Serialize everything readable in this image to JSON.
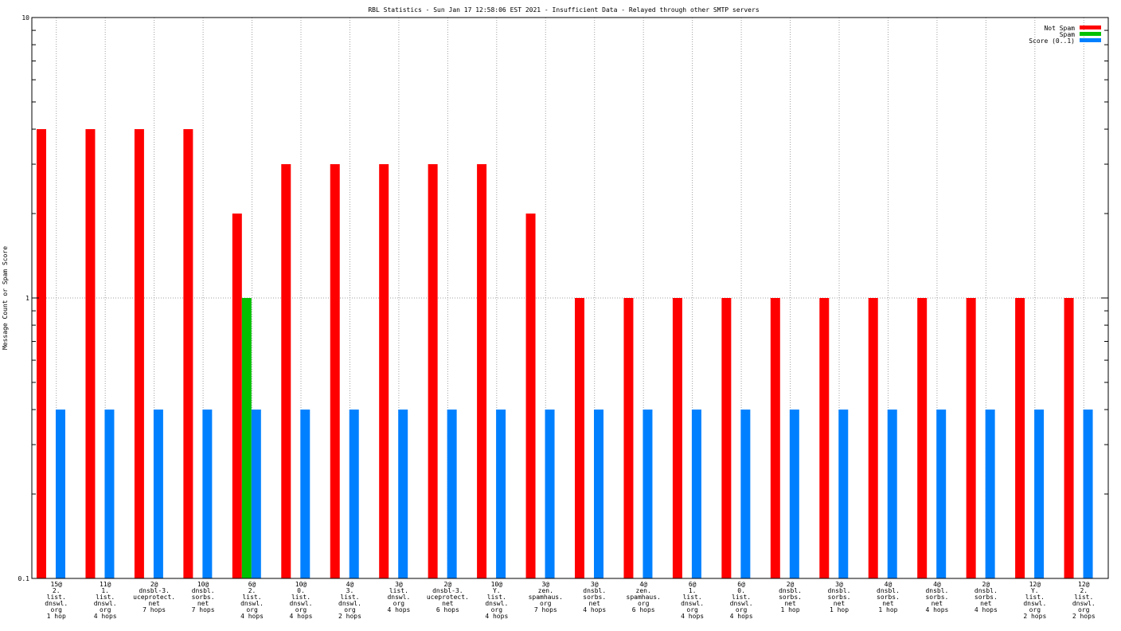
{
  "chart_data": {
    "type": "bar",
    "title": "RBL Statistics - Sun Jan 17 12:58:06 EST 2021 - Insufficient Data - Relayed through other SMTP servers",
    "ylabel": "Message Count or Spam Score",
    "xlabel": "",
    "y_scale": "log",
    "ylim": [
      0.1,
      10
    ],
    "y_ticks": [
      {
        "value": 0.1,
        "label": "0.1"
      },
      {
        "value": 1,
        "label": "1"
      },
      {
        "value": 10,
        "label": "10"
      }
    ],
    "grid": true,
    "legend_position": "top-right",
    "categories": [
      [
        "15@",
        "2.",
        "list.",
        "dnswl.",
        "org",
        "1 hop"
      ],
      [
        "11@",
        "1.",
        "list.",
        "dnswl.",
        "org",
        "4 hops"
      ],
      [
        "2@",
        "dnsbl-3.",
        "uceprotect.",
        "net",
        "7 hops"
      ],
      [
        "10@",
        "dnsbl.",
        "sorbs.",
        "net",
        "7 hops"
      ],
      [
        "6@",
        "2.",
        "list.",
        "dnswl.",
        "org",
        "4 hops"
      ],
      [
        "10@",
        "0.",
        "list.",
        "dnswl.",
        "org",
        "4 hops"
      ],
      [
        "4@",
        "3.",
        "list.",
        "dnswl.",
        "org",
        "2 hops"
      ],
      [
        "3@",
        "list.",
        "dnswl.",
        "org",
        "4 hops"
      ],
      [
        "2@",
        "dnsbl-3.",
        "uceprotect.",
        "net",
        "6 hops"
      ],
      [
        "10@",
        "Y.",
        "list.",
        "dnswl.",
        "org",
        "4 hops"
      ],
      [
        "3@",
        "zen.",
        "spamhaus.",
        "org",
        "7 hops"
      ],
      [
        "3@",
        "dnsbl.",
        "sorbs.",
        "net",
        "4 hops"
      ],
      [
        "4@",
        "zen.",
        "spamhaus.",
        "org",
        "6 hops"
      ],
      [
        "6@",
        "1.",
        "list.",
        "dnswl.",
        "org",
        "4 hops"
      ],
      [
        "6@",
        "0.",
        "list.",
        "dnswl.",
        "org",
        "4 hops"
      ],
      [
        "2@",
        "dnsbl.",
        "sorbs.",
        "net",
        "1 hop"
      ],
      [
        "3@",
        "dnsbl.",
        "sorbs.",
        "net",
        "1 hop"
      ],
      [
        "4@",
        "dnsbl.",
        "sorbs.",
        "net",
        "1 hop"
      ],
      [
        "4@",
        "dnsbl.",
        "sorbs.",
        "net",
        "4 hops"
      ],
      [
        "2@",
        "dnsbl.",
        "sorbs.",
        "net",
        "4 hops"
      ],
      [
        "12@",
        "Y.",
        "list.",
        "dnswl.",
        "org",
        "2 hops"
      ],
      [
        "12@",
        "2.",
        "list.",
        "dnswl.",
        "org",
        "2 hops"
      ]
    ],
    "series": [
      {
        "name": "Not Spam",
        "color": "#ff0000",
        "values": [
          4,
          4,
          4,
          4,
          2,
          3,
          3,
          3,
          3,
          3,
          2,
          1,
          1,
          1,
          1,
          1,
          1,
          1,
          1,
          1,
          1,
          1
        ]
      },
      {
        "name": "Spam",
        "color": "#00c000",
        "values": [
          0,
          0,
          0,
          0,
          1,
          0,
          0,
          0,
          0,
          0,
          0,
          0,
          0,
          0,
          0,
          0,
          0,
          0,
          0,
          0,
          0,
          0
        ]
      },
      {
        "name": "Score (0..1)",
        "color": "#0080ff",
        "values": [
          0.4,
          0.4,
          0.4,
          0.4,
          0.4,
          0.4,
          0.4,
          0.4,
          0.4,
          0.4,
          0.4,
          0.4,
          0.4,
          0.4,
          0.4,
          0.4,
          0.4,
          0.4,
          0.4,
          0.4,
          0.4,
          0.4
        ]
      }
    ]
  }
}
